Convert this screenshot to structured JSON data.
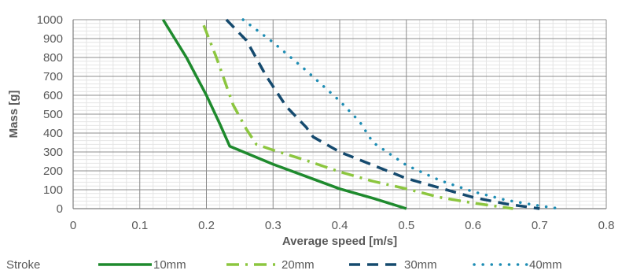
{
  "chart_data": {
    "type": "line",
    "xlabel": "Average speed [m/s]",
    "ylabel": "Mass [g]",
    "xlim": [
      0,
      0.8
    ],
    "ylim": [
      0,
      1000
    ],
    "xticks": [
      "0",
      "0.1",
      "0.2",
      "0.3",
      "0.4",
      "0.5",
      "0.6",
      "0.7",
      "0.8"
    ],
    "yticks": [
      "0",
      "100",
      "200",
      "300",
      "400",
      "500",
      "600",
      "700",
      "800",
      "900",
      "1000"
    ],
    "grid": true,
    "legend": {
      "title": "Stroke",
      "placement": "bottom"
    },
    "series": [
      {
        "name": "10mm",
        "color": "#1e8a2d",
        "dash": "solid",
        "points": [
          [
            0.135,
            1000
          ],
          [
            0.17,
            800
          ],
          [
            0.2,
            600
          ],
          [
            0.22,
            450
          ],
          [
            0.235,
            330
          ],
          [
            0.3,
            235
          ],
          [
            0.35,
            170
          ],
          [
            0.4,
            105
          ],
          [
            0.45,
            55
          ],
          [
            0.5,
            0
          ]
        ]
      },
      {
        "name": "20mm",
        "color": "#8cc63f",
        "dash": "dash-dot",
        "points": [
          [
            0.196,
            970
          ],
          [
            0.215,
            800
          ],
          [
            0.24,
            550
          ],
          [
            0.26,
            420
          ],
          [
            0.275,
            340
          ],
          [
            0.3,
            310
          ],
          [
            0.35,
            255
          ],
          [
            0.4,
            195
          ],
          [
            0.45,
            145
          ],
          [
            0.5,
            105
          ],
          [
            0.55,
            60
          ],
          [
            0.6,
            30
          ],
          [
            0.66,
            0
          ]
        ]
      },
      {
        "name": "30mm",
        "color": "#154a6e",
        "dash": "dashed",
        "points": [
          [
            0.23,
            1000
          ],
          [
            0.26,
            890
          ],
          [
            0.29,
            700
          ],
          [
            0.32,
            540
          ],
          [
            0.35,
            430
          ],
          [
            0.36,
            380
          ],
          [
            0.4,
            300
          ],
          [
            0.45,
            230
          ],
          [
            0.5,
            160
          ],
          [
            0.55,
            110
          ],
          [
            0.6,
            60
          ],
          [
            0.65,
            25
          ],
          [
            0.7,
            0
          ]
        ]
      },
      {
        "name": "40mm",
        "color": "#1e8db4",
        "dash": "dotted",
        "points": [
          [
            0.255,
            1000
          ],
          [
            0.3,
            880
          ],
          [
            0.35,
            730
          ],
          [
            0.4,
            570
          ],
          [
            0.43,
            460
          ],
          [
            0.45,
            350
          ],
          [
            0.5,
            230
          ],
          [
            0.55,
            150
          ],
          [
            0.6,
            90
          ],
          [
            0.65,
            45
          ],
          [
            0.7,
            15
          ],
          [
            0.73,
            0
          ]
        ]
      }
    ]
  }
}
